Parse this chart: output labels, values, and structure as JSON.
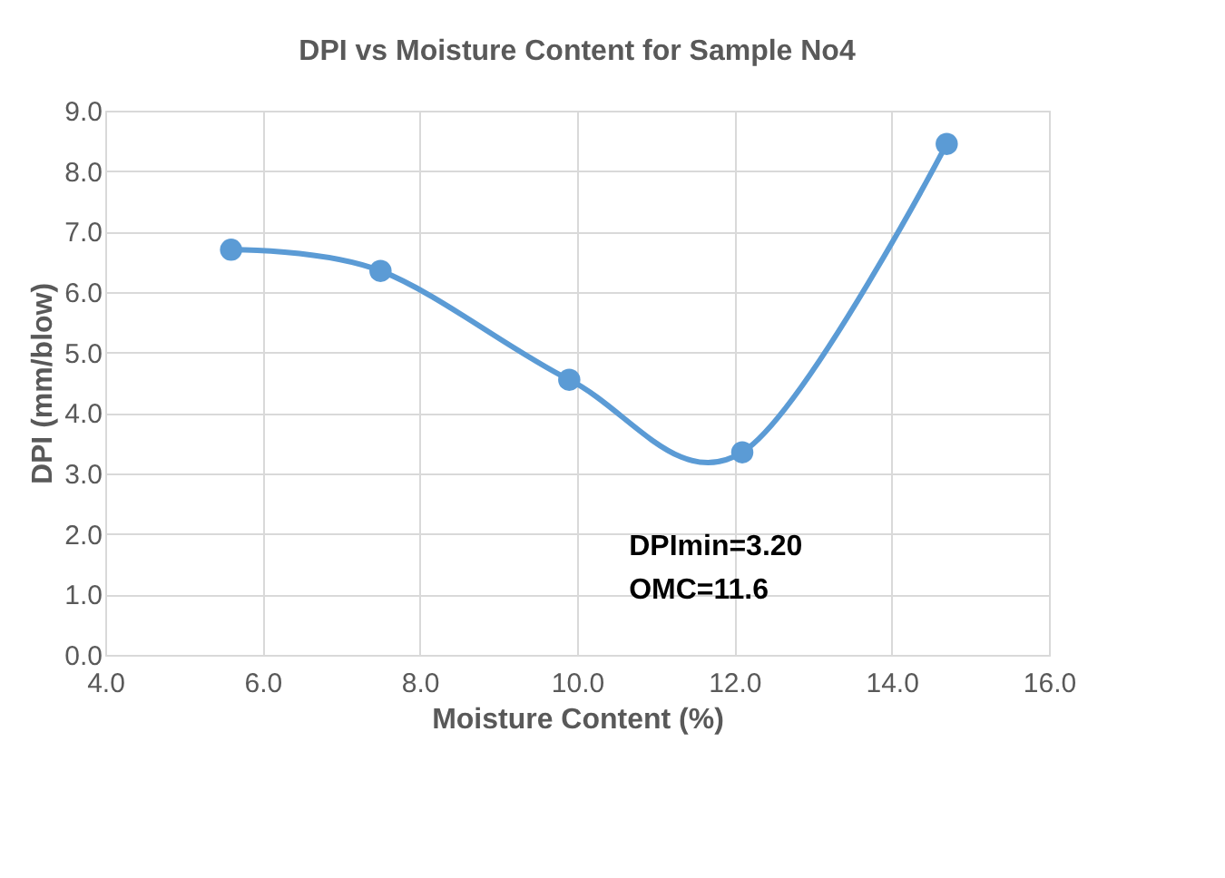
{
  "chart_data": {
    "type": "line",
    "title": "DPI vs Moisture Content for Sample No4",
    "xlabel": "Moisture Content  (%)",
    "ylabel": "DPI (mm/blow)",
    "x": [
      5.6,
      7.5,
      9.9,
      12.1,
      14.7
    ],
    "series": [
      {
        "color": "#5b9bd5",
        "values": [
          6.7,
          6.35,
          4.55,
          3.35,
          8.45
        ]
      }
    ],
    "marker": "circle",
    "line_style": "solid",
    "grid": true,
    "xlim": [
      4,
      16
    ],
    "xticks": [
      {
        "value": 4,
        "label": "4.0"
      },
      {
        "value": 6,
        "label": "6.0"
      },
      {
        "value": 8,
        "label": "8.0"
      },
      {
        "value": 10,
        "label": "10.0"
      },
      {
        "value": 12,
        "label": "12.0"
      },
      {
        "value": 14,
        "label": "14.0"
      },
      {
        "value": 16,
        "label": "16.0"
      }
    ],
    "ylim": [
      0,
      9
    ],
    "yticks": [
      {
        "value": 0,
        "label": "0.0"
      },
      {
        "value": 1,
        "label": "1.0"
      },
      {
        "value": 2,
        "label": "2.0"
      },
      {
        "value": 3,
        "label": "3.0"
      },
      {
        "value": 4,
        "label": "4.0"
      },
      {
        "value": 5,
        "label": "5.0"
      },
      {
        "value": 6,
        "label": "6.0"
      },
      {
        "value": 7,
        "label": "7.0"
      },
      {
        "value": 8,
        "label": "8.0"
      },
      {
        "value": 9,
        "label": "9.0"
      }
    ],
    "annotations": [
      "DPImin=3.20",
      "OMC=11.6"
    ]
  }
}
